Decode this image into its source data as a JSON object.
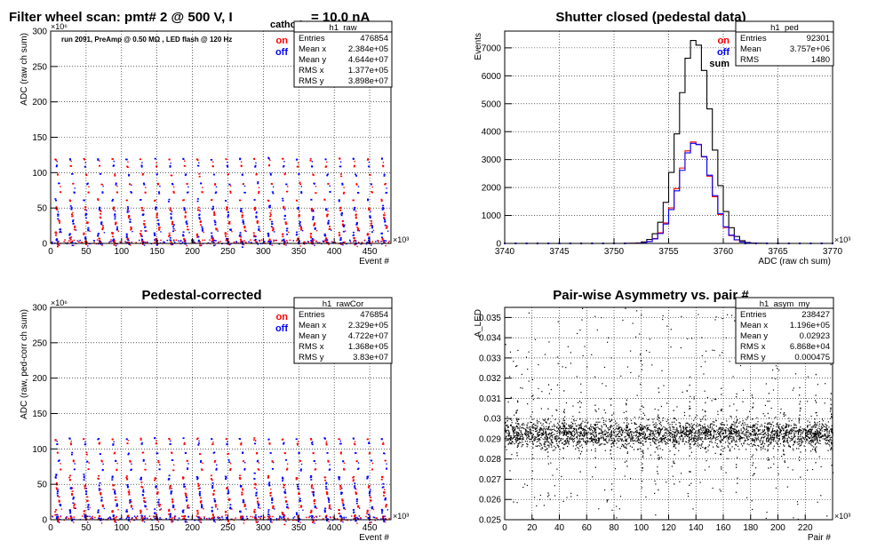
{
  "canvas_title": {
    "prefix": "Filter wheel scan: pmt#   2 @   500 V, I",
    "sub": "cathode",
    "suffix": "= 10.0 nA"
  },
  "chart_data": [
    {
      "id": "raw",
      "type": "scatter",
      "title": "",
      "xlabel": "Event #",
      "ylabel": "ADC (raw ch sum)",
      "xlim": [
        0,
        480
      ],
      "ylim": [
        0,
        300
      ],
      "x_exponent": "×10³",
      "y_exponent": "×10⁶",
      "x_ticks": [
        0,
        50,
        100,
        150,
        200,
        250,
        300,
        350,
        400,
        450
      ],
      "y_ticks": [
        0,
        50,
        100,
        150,
        200,
        250,
        300
      ],
      "grid": true,
      "annotation": "run 2091, PreAmp @ 0.50 MΩ , LED flash @  120 Hz",
      "legend": {
        "position": "top-right",
        "entries": [
          {
            "label": "on",
            "color": "#ff0000"
          },
          {
            "label": "off",
            "color": "#0000ff"
          }
        ]
      },
      "stats": {
        "title": "h1_raw",
        "rows": [
          [
            "Entries",
            "476854"
          ],
          [
            "Mean x",
            "2.384e+05"
          ],
          [
            "Mean y",
            "4.644e+07"
          ],
          [
            "RMS x",
            "1.377e+05"
          ],
          [
            "RMS y",
            "3.898e+07"
          ]
        ]
      },
      "pattern": {
        "period": 20,
        "levels": [
          120,
          110,
          98,
          85,
          73,
          62,
          50,
          40,
          30,
          22,
          13,
          6,
          2
        ]
      }
    },
    {
      "id": "ped",
      "type": "histogram",
      "title": "Shutter closed (pedestal data)",
      "xlabel": "ADC (raw ch sum)",
      "ylabel": "Events",
      "xlim": [
        3740,
        3770
      ],
      "ylim": [
        0,
        7600
      ],
      "x_exponent": "×10³",
      "x_ticks": [
        3740,
        3745,
        3750,
        3755,
        3760,
        3765,
        3770
      ],
      "y_ticks": [
        0,
        1000,
        2000,
        3000,
        4000,
        5000,
        6000,
        7000
      ],
      "grid": true,
      "legend": {
        "position": "top-right",
        "entries": [
          {
            "label": "on",
            "color": "#ff0000"
          },
          {
            "label": "off",
            "color": "#0000ff"
          },
          {
            "label": "sum",
            "color": "#000000"
          }
        ]
      },
      "stats": {
        "title": "h1_ped",
        "rows": [
          [
            "Entries",
            "92301"
          ],
          [
            "Mean",
            "3.757e+06"
          ],
          [
            "RMS",
            "1480"
          ]
        ]
      },
      "bin_width": 0.5,
      "sum": {
        "mean": 3757.4,
        "sigma": 1.48,
        "peak": 7300
      },
      "halves": {
        "mean": 3757.4,
        "sigma": 1.48,
        "peak": 3650
      }
    },
    {
      "id": "rawcor",
      "type": "scatter",
      "title": "Pedestal-corrected",
      "xlabel": "Event #",
      "ylabel": "ADC (raw, ped-corr ch sum)",
      "xlim": [
        0,
        480
      ],
      "ylim": [
        0,
        300
      ],
      "x_exponent": "×10³",
      "y_exponent": "×10⁶",
      "x_ticks": [
        0,
        50,
        100,
        150,
        200,
        250,
        300,
        350,
        400,
        450
      ],
      "y_ticks": [
        0,
        50,
        100,
        150,
        200,
        250,
        300
      ],
      "grid": true,
      "legend": {
        "position": "top-right",
        "entries": [
          {
            "label": "on",
            "color": "#ff0000"
          },
          {
            "label": "off",
            "color": "#0000ff"
          }
        ]
      },
      "stats": {
        "title": "h1_rawCor",
        "rows": [
          [
            "Entries",
            "476854"
          ],
          [
            "Mean x",
            "2.329e+05"
          ],
          [
            "Mean y",
            "4.722e+07"
          ],
          [
            "RMS x",
            "1.368e+05"
          ],
          [
            "RMS y",
            "3.83e+07"
          ]
        ]
      },
      "pattern": {
        "period": 20,
        "levels": [
          115,
          108,
          95,
          84,
          72,
          60,
          48,
          38,
          28,
          20,
          12,
          5,
          1
        ]
      }
    },
    {
      "id": "asym",
      "type": "scatter",
      "title": "Pair-wise Asymmetry vs. pair #",
      "xlabel": "Pair #",
      "ylabel": "A_LED",
      "xlim": [
        0,
        240
      ],
      "ylim": [
        0.025,
        0.0355
      ],
      "x_exponent": "×10³",
      "x_ticks": [
        0,
        20,
        40,
        60,
        80,
        100,
        120,
        140,
        160,
        180,
        200,
        220
      ],
      "y_ticks": [
        0.025,
        0.026,
        0.027,
        0.028,
        0.029,
        0.03,
        0.031,
        0.032,
        0.033,
        0.034,
        0.035
      ],
      "grid": true,
      "stats": {
        "title": "h1_asym_my",
        "rows": [
          [
            "Entries",
            "238427"
          ],
          [
            "Mean x",
            "1.196e+05"
          ],
          [
            "Mean y",
            "0.02923"
          ],
          [
            "RMS x",
            "6.868e+04"
          ],
          [
            "RMS y",
            "0.000475"
          ]
        ]
      },
      "band": {
        "center": 0.02925,
        "half_width": 0.0006
      }
    }
  ]
}
